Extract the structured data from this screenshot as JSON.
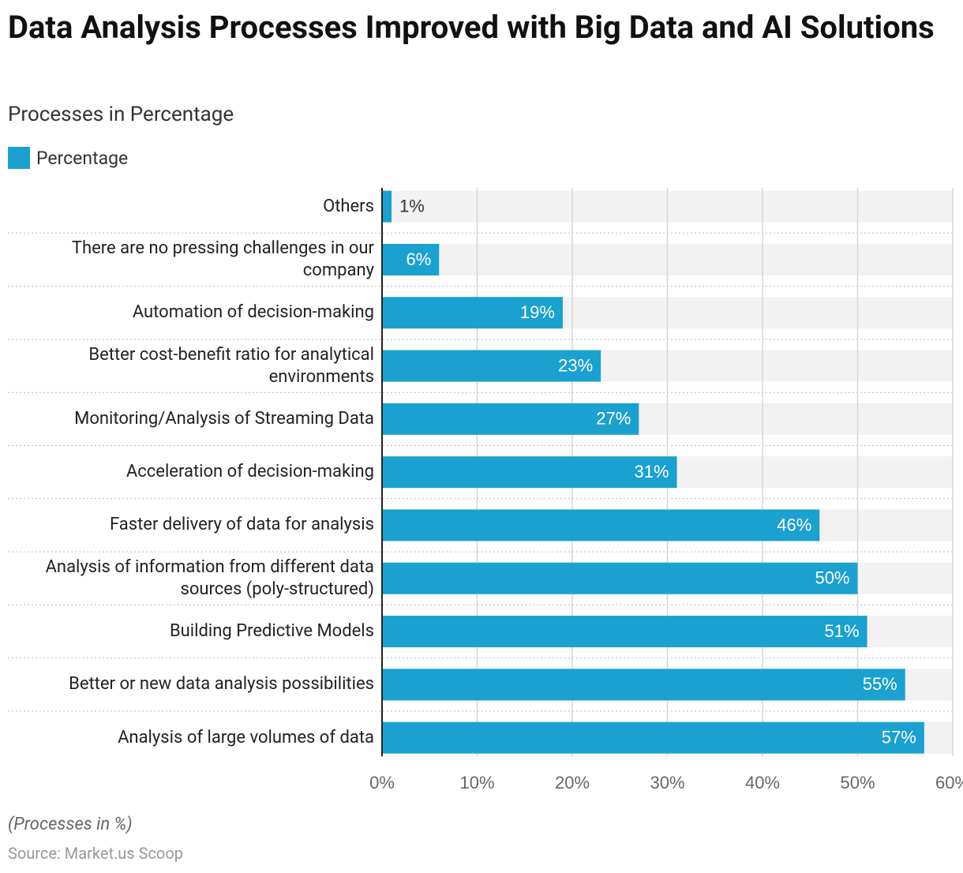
{
  "chart_data": {
    "type": "bar",
    "orientation": "horizontal",
    "title": "Data Analysis Processes Improved with Big Data and AI Solutions",
    "subtitle": "Processes in Percentage",
    "categories": [
      "Others",
      "There are no pressing challenges in our company",
      "Automation of decision-making",
      "Better cost-benefit ratio for analytical environments",
      "Monitoring/Analysis of Streaming Data",
      "Acceleration of decision-making",
      "Faster delivery of data for analysis",
      "Analysis of information from different data sources (poly-structured)",
      "Building Predictive Models",
      "Better or new data analysis possibilities",
      "Analysis of large volumes of data"
    ],
    "series": [
      {
        "name": "Percentage",
        "color": "#1ba1cf",
        "values": [
          1,
          6,
          19,
          23,
          27,
          31,
          46,
          50,
          51,
          55,
          57
        ],
        "value_labels": [
          "1%",
          "6%",
          "19%",
          "23%",
          "27%",
          "31%",
          "46%",
          "50%",
          "51%",
          "55%",
          "57%"
        ]
      }
    ],
    "xlim": [
      0,
      60
    ],
    "xticks": [
      {
        "value": 0,
        "label": "0%"
      },
      {
        "value": 10,
        "label": "10%"
      },
      {
        "value": 20,
        "label": "20%"
      },
      {
        "value": 30,
        "label": "30%"
      },
      {
        "value": 40,
        "label": "40%"
      },
      {
        "value": 50,
        "label": "50%"
      },
      {
        "value": 60,
        "label": "60%"
      }
    ],
    "grid": true,
    "note": "(Processes in %)",
    "source": "Source: Market.us Scoop"
  }
}
